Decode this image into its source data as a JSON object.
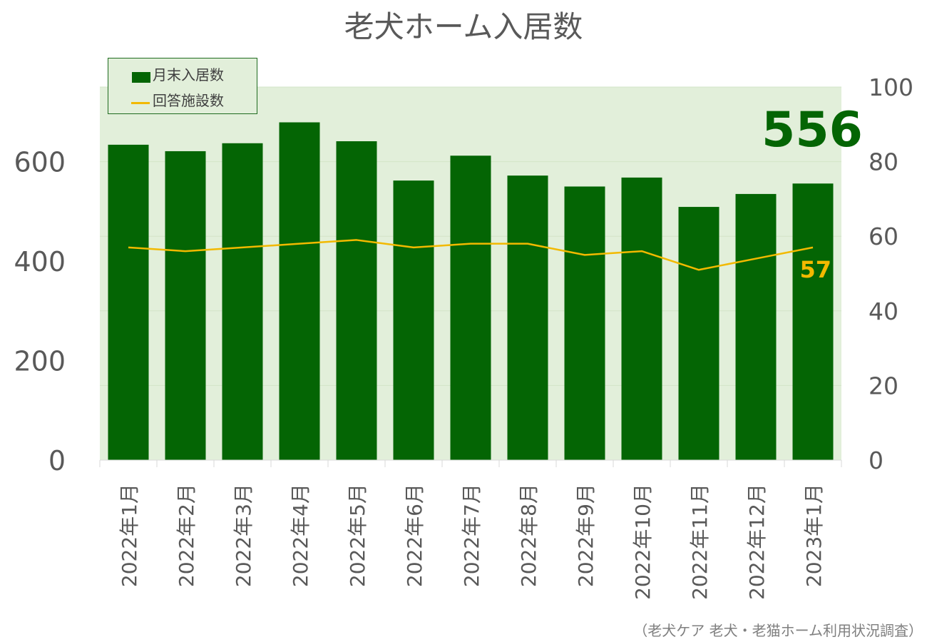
{
  "title": "老犬ホーム入居数",
  "source_note": "（老犬ケア 老犬・老猫ホーム利用状況調査）",
  "legend": {
    "bar_label": "月末入居数",
    "line_label": "回答施設数"
  },
  "callouts": {
    "latest_bar_value": "556",
    "latest_line_value": "57"
  },
  "colors": {
    "bar": "#046504",
    "line": "#f2b900",
    "plot_background": "#e2efda",
    "axis_text": "#595959"
  },
  "chart_data": {
    "type": "bar",
    "title": "老犬ホーム入居数",
    "categories": [
      "2022年1月",
      "2022年2月",
      "2022年3月",
      "2022年4月",
      "2022年5月",
      "2022年6月",
      "2022年7月",
      "2022年8月",
      "2022年9月",
      "2022年10月",
      "2022年11月",
      "2022年12月",
      "2023年1月"
    ],
    "series": [
      {
        "name": "月末入居数",
        "type": "bar",
        "axis": "left",
        "values": [
          634,
          621,
          637,
          679,
          641,
          562,
          612,
          572,
          550,
          568,
          509,
          535,
          556
        ]
      },
      {
        "name": "回答施設数",
        "type": "line",
        "axis": "right",
        "values": [
          57,
          56,
          57,
          58,
          59,
          57,
          58,
          58,
          55,
          56,
          51,
          54,
          57
        ]
      }
    ],
    "y_left": {
      "ticks": [
        0,
        200,
        400,
        600
      ],
      "ylim": [
        0,
        750
      ]
    },
    "y_right": {
      "ticks": [
        0,
        20,
        40,
        60,
        80,
        100
      ],
      "ylim": [
        0,
        100
      ]
    },
    "grid": true,
    "legend_position": "top-left"
  }
}
